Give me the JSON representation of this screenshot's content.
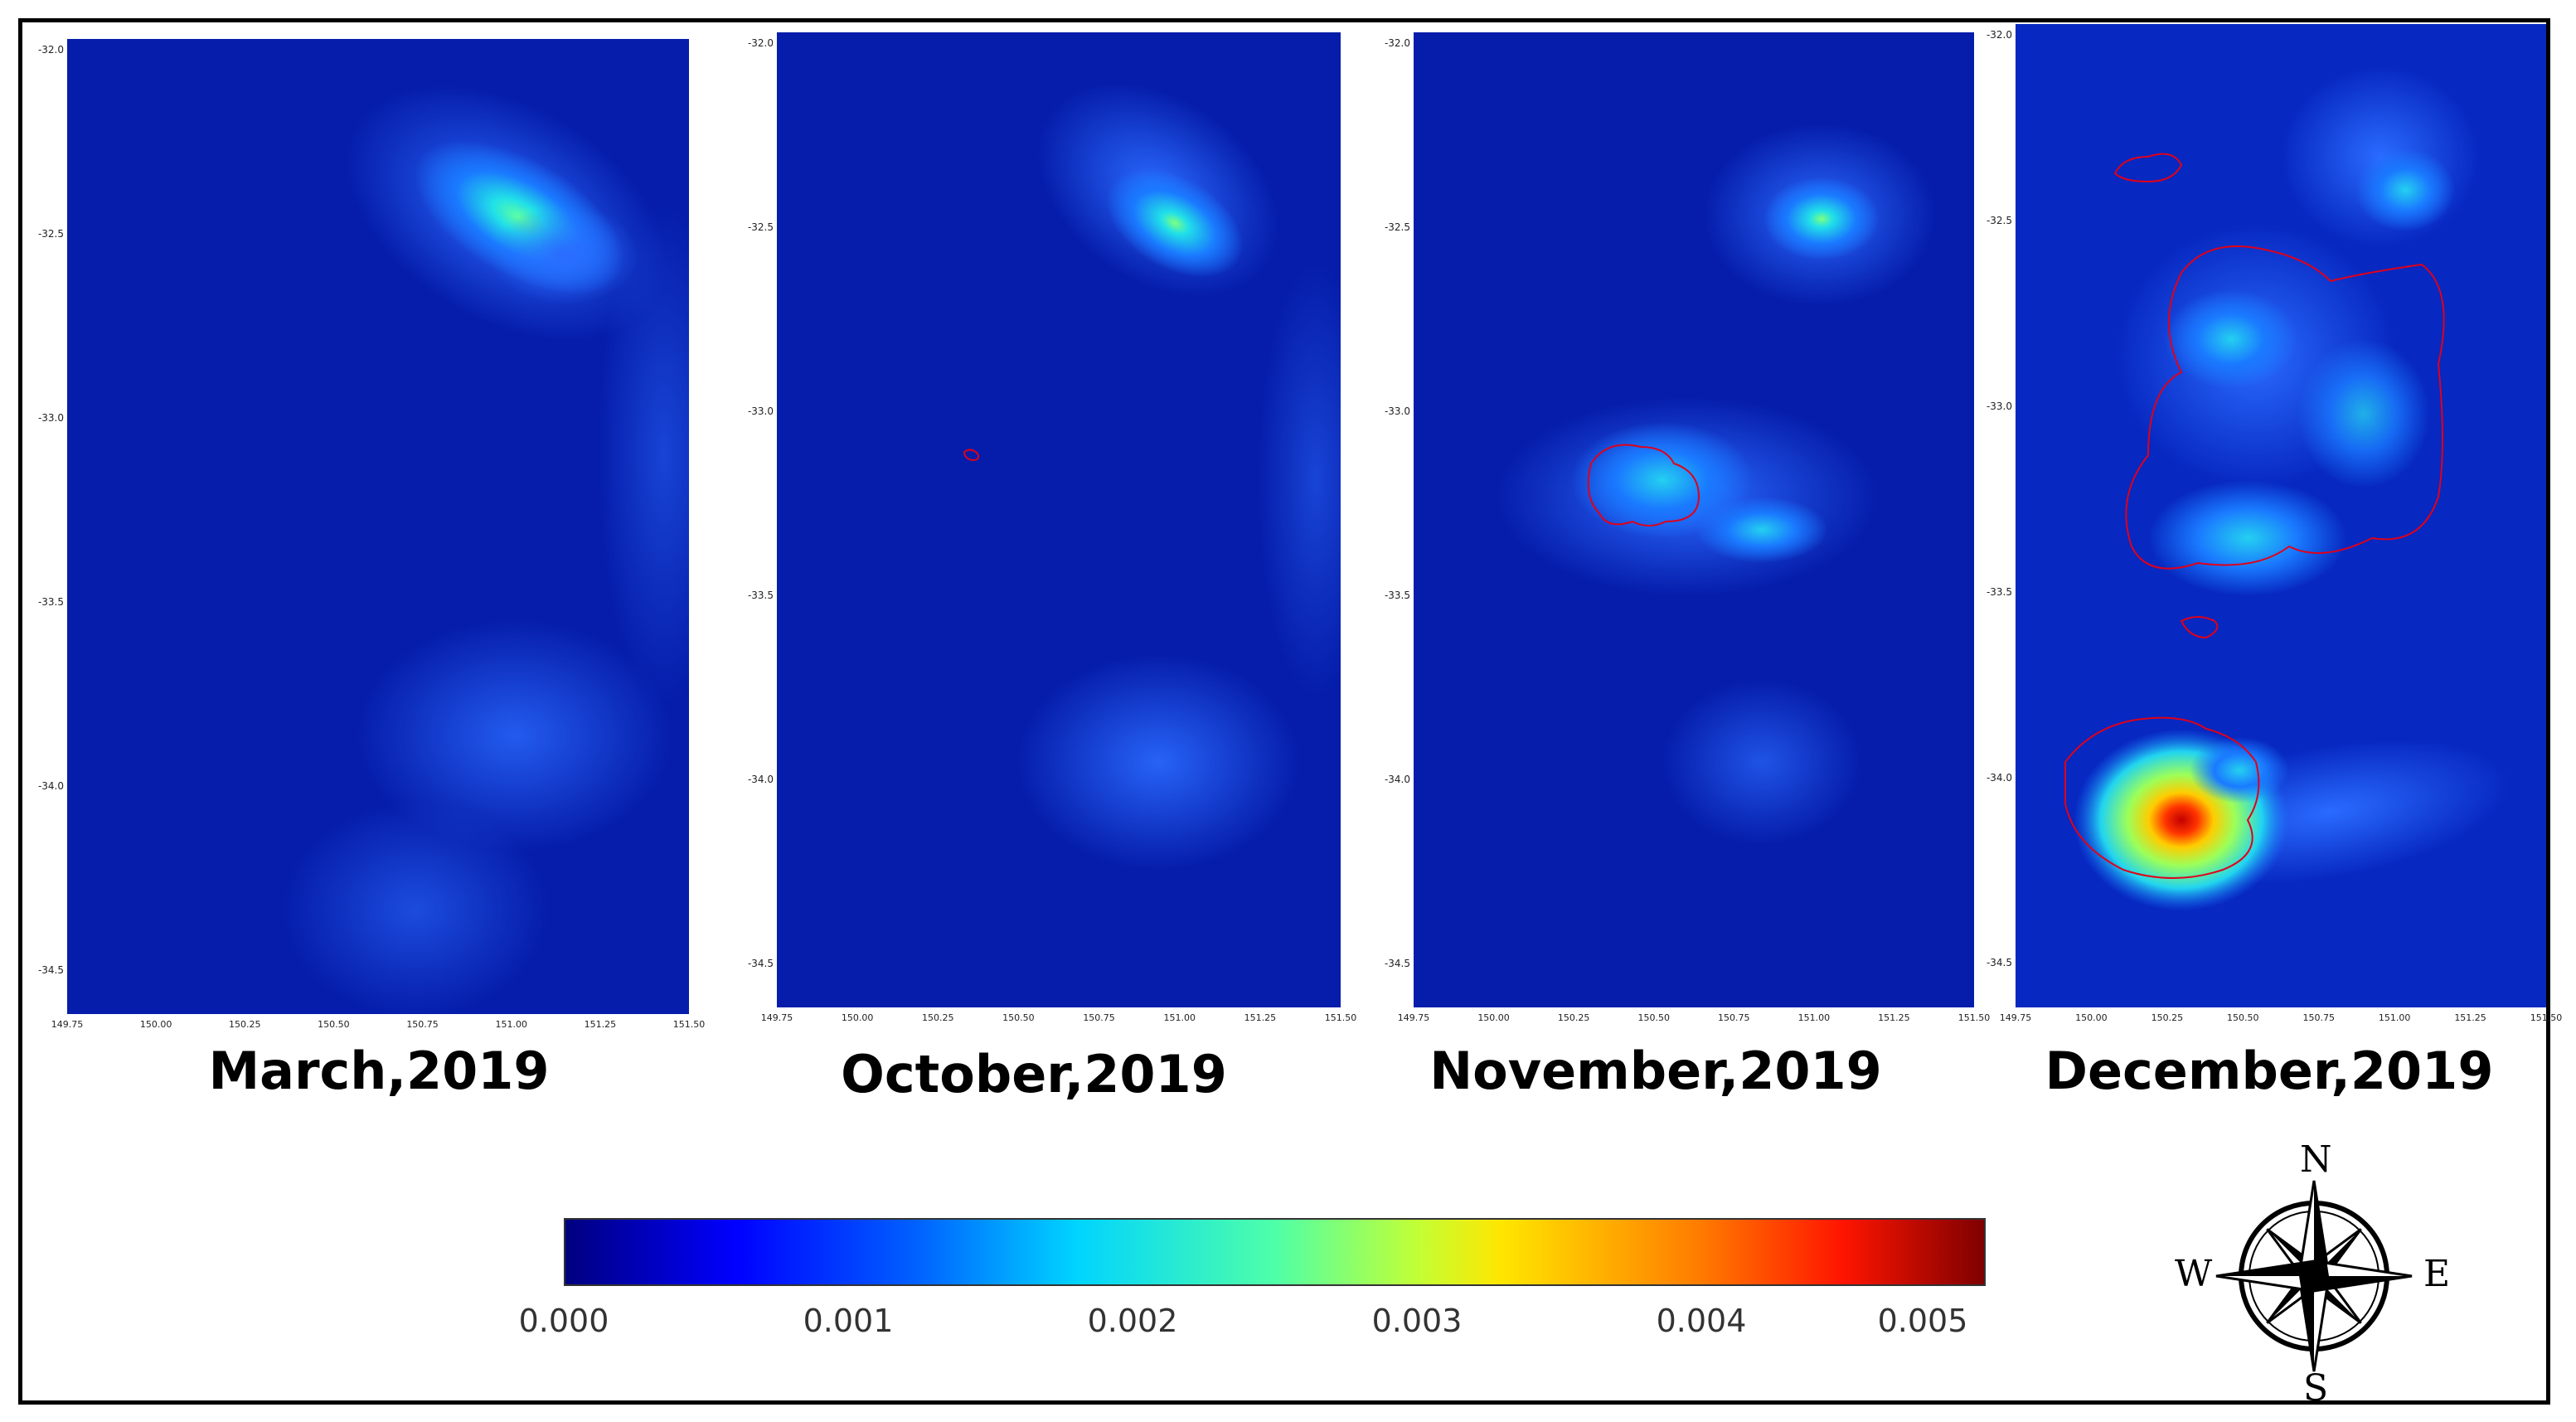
{
  "figure": {
    "panels": [
      {
        "title": "March,2019"
      },
      {
        "title": "October,2019"
      },
      {
        "title": "November,2019"
      },
      {
        "title": "December,2019"
      }
    ],
    "y_ticks": [
      "-32.0",
      "-32.5",
      "-33.0",
      "-33.5",
      "-34.0",
      "-34.5"
    ],
    "x_ticks": [
      "149.75",
      "150.00",
      "150.25",
      "150.50",
      "150.75",
      "151.00",
      "151.25",
      "151.50"
    ],
    "colorbar": {
      "labels": [
        "0.000",
        "0.001",
        "0.002",
        "0.003",
        "0.004",
        "0.005"
      ],
      "colormap": "jet",
      "min": 0.0,
      "max": 0.005
    },
    "compass": {
      "north": "N",
      "south": "S",
      "east": "E",
      "west": "W"
    },
    "colors": {
      "background": "#00007f",
      "burn_outline": "#e0001a"
    }
  }
}
